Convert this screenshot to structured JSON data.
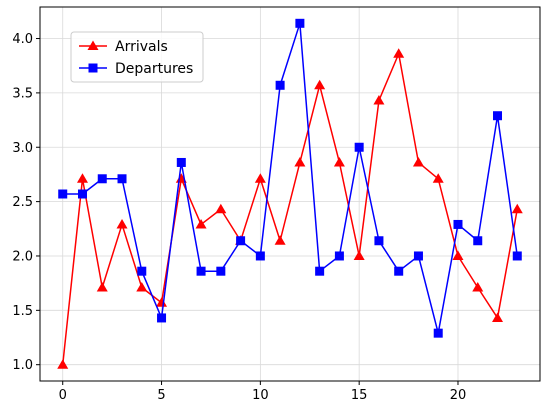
{
  "chart_data": {
    "type": "line",
    "title": "",
    "xlabel": "",
    "ylabel": "",
    "xlim": [
      -1.15,
      24.15
    ],
    "ylim": [
      0.85,
      4.29
    ],
    "x_ticks": [
      0,
      5,
      10,
      15,
      20
    ],
    "y_ticks": [
      1.0,
      1.5,
      2.0,
      2.5,
      3.0,
      3.5,
      4.0
    ],
    "grid": true,
    "legend_position": "upper-left",
    "x": [
      0,
      1,
      2,
      3,
      4,
      5,
      6,
      7,
      8,
      9,
      10,
      11,
      12,
      13,
      14,
      15,
      16,
      17,
      18,
      19,
      20,
      21,
      22,
      23
    ],
    "series": [
      {
        "name": "Arrivals",
        "color": "#ff0000",
        "marker": "triangle",
        "values": [
          1.0,
          2.71,
          1.71,
          2.29,
          1.71,
          1.57,
          2.71,
          2.29,
          2.43,
          2.14,
          2.71,
          2.14,
          2.86,
          3.57,
          2.86,
          2.0,
          3.43,
          3.86,
          2.86,
          2.71,
          2.0,
          1.71,
          1.43,
          2.43
        ]
      },
      {
        "name": "Departures",
        "color": "#0000ff",
        "marker": "square",
        "values": [
          2.57,
          2.57,
          2.71,
          2.71,
          1.86,
          1.43,
          2.86,
          1.86,
          1.86,
          2.14,
          2.0,
          3.57,
          4.14,
          1.86,
          2.0,
          3.0,
          2.14,
          1.86,
          2.0,
          1.29,
          2.29,
          2.14,
          3.29,
          2.0
        ]
      }
    ]
  }
}
